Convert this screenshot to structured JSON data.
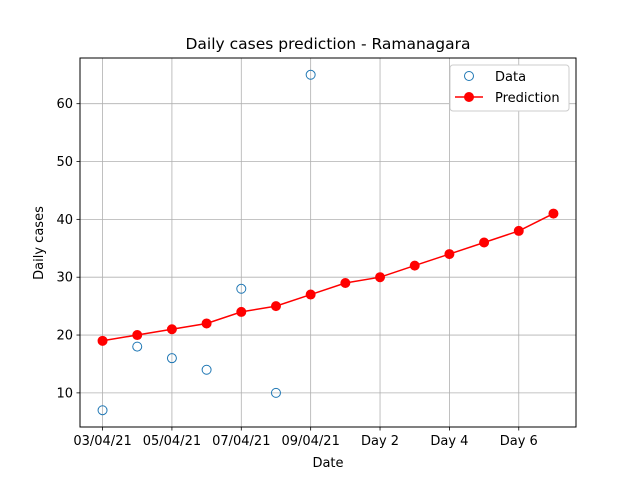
{
  "chart_data": {
    "type": "line",
    "title": "Daily cases prediction - Ramanagara",
    "xlabel": "Date",
    "ylabel": "Daily cases",
    "x_tick_labels": [
      "03/04/21",
      "05/04/21",
      "07/04/21",
      "09/04/21",
      "Day 2",
      "Day 4",
      "Day 6"
    ],
    "ylim": [
      4.1,
      67.9
    ],
    "y_ticks": [
      10,
      20,
      30,
      40,
      50,
      60
    ],
    "grid": true,
    "legend_position": "top-right",
    "series": [
      {
        "name": "Data",
        "style": "hollow-circle-markers",
        "color": "#1f77b4",
        "values": [
          7,
          18,
          16,
          14,
          28,
          10,
          65
        ]
      },
      {
        "name": "Prediction",
        "style": "line-with-filled-markers",
        "color": "#ff0000",
        "values": [
          19,
          20,
          21,
          22,
          24,
          25,
          27,
          29,
          30,
          32,
          34,
          36,
          38,
          41
        ]
      }
    ]
  }
}
